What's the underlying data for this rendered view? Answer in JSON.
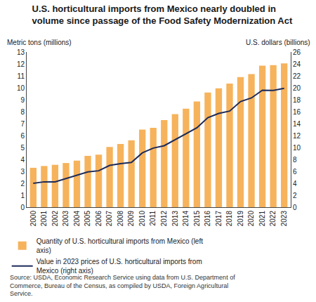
{
  "chart_data": {
    "type": "bar",
    "title": "U.S. horticultural imports from Mexico nearly doubled in volume since passage of the Food Safety Modernization Act",
    "ylabel": "Metric tons (millions)",
    "y2label": "U.S. dollars (billions)",
    "categories": [
      "2000",
      "2001",
      "2002",
      "2003",
      "2004",
      "2005",
      "2006",
      "2007",
      "2008",
      "2009",
      "2010",
      "2011",
      "2012",
      "2013",
      "2014",
      "2015",
      "2016",
      "2017",
      "2018",
      "2019",
      "2020",
      "2021",
      "2022",
      "2023"
    ],
    "series": [
      {
        "name": "Quantity of U.S. horticultural imports from Mexico (left axis)",
        "type": "bar",
        "axis": "y",
        "color": "#f6b35c",
        "values": [
          3.3,
          3.45,
          3.55,
          3.7,
          3.9,
          4.3,
          4.4,
          5.05,
          5.3,
          5.6,
          6.5,
          6.65,
          7.3,
          7.8,
          8.25,
          8.85,
          9.6,
          9.95,
          10.35,
          10.9,
          11.15,
          11.85,
          11.9,
          12.05
        ]
      },
      {
        "name": "Value in 2023 prices of U.S. horticultural imports from Mexico (right axis)",
        "type": "line",
        "axis": "y2",
        "color": "#1c2b5a",
        "values": [
          4.0,
          4.25,
          4.25,
          4.8,
          5.3,
          5.9,
          6.1,
          7.0,
          7.3,
          7.5,
          9.1,
          9.9,
          10.3,
          11.3,
          12.3,
          13.3,
          15.0,
          15.7,
          16.1,
          17.7,
          18.3,
          19.6,
          19.55,
          19.9
        ]
      }
    ],
    "ylim": [
      0,
      13
    ],
    "yticks": [
      0,
      1,
      2,
      3,
      4,
      5,
      6,
      7,
      8,
      9,
      10,
      11,
      12,
      13
    ],
    "y2lim": [
      0,
      26
    ],
    "y2ticks": [
      0,
      2,
      4,
      6,
      8,
      10,
      12,
      14,
      16,
      18,
      20,
      22,
      24,
      26
    ],
    "grid": false,
    "legend": "bottom",
    "source": "Source: USDA, Economic Research Service using data from U.S. Department of Commerce, Bureau of the Census, as compiled by USDA, Foreign Agricultural Service."
  }
}
